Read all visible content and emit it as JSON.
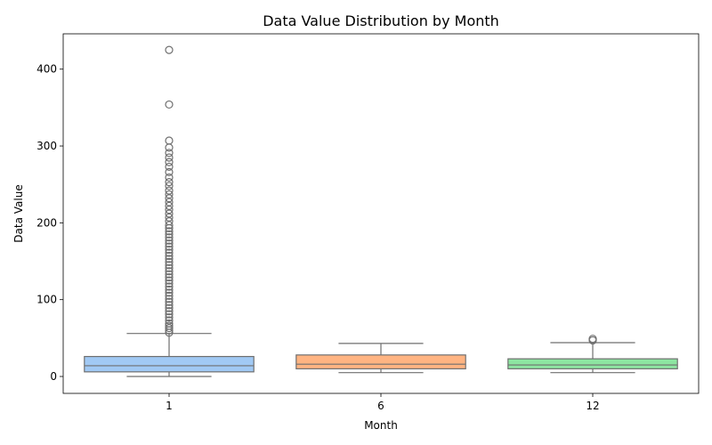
{
  "chart_data": {
    "type": "box",
    "title": "Data Value Distribution by Month",
    "xlabel": "Month",
    "ylabel": "Data Value",
    "categories": [
      "1",
      "6",
      "12"
    ],
    "ylim": [
      -22,
      446
    ],
    "yticks": [
      0,
      100,
      200,
      300,
      400
    ],
    "grid": false,
    "colors": {
      "1": "#a1c9f4",
      "6": "#ffb482",
      "12": "#8de5a1"
    },
    "line_color": "#6f6f6f",
    "boxes": [
      {
        "category": "1",
        "whisker_low": 0,
        "q1": 6,
        "median": 14,
        "q3": 26,
        "whisker_high": 56,
        "outliers": [
          425,
          354,
          307,
          298,
          291,
          285,
          279,
          273,
          266,
          259,
          253,
          248,
          242,
          237,
          232,
          227,
          222,
          217,
          212,
          207,
          202,
          197,
          193,
          189,
          185,
          181,
          177,
          173,
          169,
          165,
          161,
          157,
          153,
          149,
          145,
          141,
          137,
          133,
          129,
          125,
          121,
          117,
          113,
          109,
          105,
          101,
          97,
          93,
          89,
          85,
          81,
          77,
          73,
          69,
          66,
          63,
          60,
          57
        ]
      },
      {
        "category": "6",
        "whisker_low": 5,
        "q1": 10,
        "median": 16,
        "q3": 28,
        "whisker_high": 43,
        "outliers": []
      },
      {
        "category": "12",
        "whisker_low": 5,
        "q1": 10,
        "median": 15,
        "q3": 23,
        "whisker_high": 44,
        "outliers": [
          47,
          49
        ]
      }
    ]
  }
}
